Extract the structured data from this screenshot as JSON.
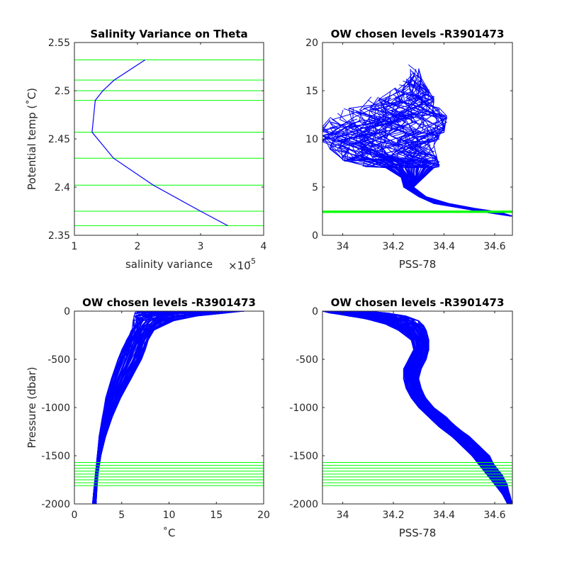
{
  "colors": {
    "profile": "#0000ff",
    "level": "#00ff00",
    "axis": "#262626",
    "background": "#ffffff"
  },
  "chart_data": [
    {
      "type": "line",
      "title": "Salinity Variance on Theta",
      "xlabel": "salinity variance",
      "x_exponent_label": "×10",
      "x_exponent_power": "-5",
      "ylabel": "Potential temp (˚C)",
      "xlim": [
        1,
        4
      ],
      "ylim": [
        2.35,
        2.55
      ],
      "xticks": [
        1,
        2,
        3,
        4
      ],
      "xtick_labels": [
        "1",
        "2",
        "3",
        "4"
      ],
      "yticks": [
        2.35,
        2.4,
        2.45,
        2.5,
        2.55
      ],
      "ytick_labels": [
        "2.35",
        "2.4",
        "2.45",
        "2.5",
        "2.55"
      ],
      "series": [
        {
          "x": [
            3.43,
            3.0,
            2.25,
            1.62,
            1.28,
            1.33,
            1.45,
            1.63,
            2.12
          ],
          "y": [
            2.36,
            2.375,
            2.402,
            2.43,
            2.457,
            2.49,
            2.5,
            2.511,
            2.532
          ]
        }
      ],
      "levels": [
        2.36,
        2.375,
        2.402,
        2.43,
        2.457,
        2.49,
        2.5,
        2.511,
        2.532
      ]
    },
    {
      "type": "line",
      "title": "OW chosen levels -R3901473",
      "xlabel": "PSS-78",
      "ylabel": "",
      "xlim": [
        33.92,
        34.67
      ],
      "ylim": [
        0,
        20
      ],
      "xticks": [
        34,
        34.2,
        34.4,
        34.6
      ],
      "xtick_labels": [
        "34",
        "34.2",
        "34.4",
        "34.6"
      ],
      "yticks": [
        0,
        5,
        10,
        15,
        20
      ],
      "ytick_labels": [
        "0",
        "5",
        "10",
        "15",
        "20"
      ],
      "profile_envelope": {
        "theta": [
          2.0,
          2.4,
          2.8,
          3.3,
          4.0,
          5.0,
          6.0,
          7.0,
          7.5,
          8.0,
          9.0,
          10.0,
          11.0,
          12.0,
          13.0,
          14.0,
          15.0,
          16.0,
          17.0,
          18.0
        ],
        "s_min": [
          34.66,
          34.56,
          34.47,
          34.36,
          34.3,
          34.24,
          34.23,
          34.17,
          34.08,
          34.0,
          33.95,
          33.92,
          33.92,
          33.95,
          33.98,
          34.03,
          34.1,
          34.15,
          34.18,
          34.22
        ],
        "s_max": [
          34.67,
          34.62,
          34.52,
          34.42,
          34.33,
          34.28,
          34.32,
          34.36,
          34.38,
          34.37,
          34.36,
          34.38,
          34.4,
          34.41,
          34.38,
          34.36,
          34.34,
          34.31,
          34.3,
          34.26
        ]
      },
      "levels": [
        2.36,
        2.375,
        2.402,
        2.43,
        2.457,
        2.49,
        2.5,
        2.511,
        2.532
      ]
    },
    {
      "type": "line",
      "title": "OW chosen levels -R3901473",
      "xlabel": "˚C",
      "ylabel": "Pressure (dbar)",
      "xlim": [
        0,
        20
      ],
      "ylim": [
        -2000,
        0
      ],
      "xticks": [
        0,
        5,
        10,
        15,
        20
      ],
      "xtick_labels": [
        "0",
        "5",
        "10",
        "15",
        "20"
      ],
      "yticks": [
        -2000,
        -1500,
        -1000,
        -500,
        0
      ],
      "ytick_labels": [
        "-2000",
        "-1500",
        "-1000",
        "-500",
        "0"
      ],
      "profile_envelope": {
        "p": [
          0,
          -20,
          -50,
          -100,
          -200,
          -300,
          -400,
          -500,
          -700,
          -900,
          -1100,
          -1300,
          -1500,
          -1700,
          -1900,
          -2000
        ],
        "v_min": [
          6.5,
          6.4,
          6.3,
          6.2,
          6.0,
          5.5,
          5.0,
          4.6,
          3.9,
          3.3,
          2.9,
          2.6,
          2.4,
          2.2,
          2.0,
          1.9
        ],
        "v_max": [
          18.0,
          16.0,
          13.0,
          10.5,
          8.5,
          7.8,
          7.5,
          7.1,
          6.0,
          4.9,
          4.0,
          3.3,
          2.8,
          2.5,
          2.35,
          2.3
        ]
      },
      "levels": [
        -1570,
        -1600,
        -1630,
        -1660,
        -1690,
        -1720,
        -1750,
        -1780,
        -1810
      ]
    },
    {
      "type": "line",
      "title": "OW chosen levels -R3901473",
      "xlabel": "PSS-78",
      "ylabel": "",
      "xlim": [
        33.92,
        34.67
      ],
      "ylim": [
        -2000,
        0
      ],
      "xticks": [
        34,
        34.2,
        34.4,
        34.6
      ],
      "xtick_labels": [
        "34",
        "34.2",
        "34.4",
        "34.6"
      ],
      "yticks": [
        -2000,
        -1500,
        -1000,
        -500,
        0
      ],
      "ytick_labels": [
        "-2000",
        "-1500",
        "-1000",
        "-500",
        "0"
      ],
      "profile_envelope": {
        "p": [
          0,
          -20,
          -50,
          -100,
          -150,
          -200,
          -300,
          -400,
          -500,
          -600,
          -700,
          -800,
          -900,
          -1000,
          -1100,
          -1200,
          -1300,
          -1400,
          -1500,
          -1600,
          -1700,
          -1800,
          -1900,
          -2000
        ],
        "v_min": [
          33.92,
          33.95,
          34.02,
          34.12,
          34.18,
          34.22,
          34.27,
          34.28,
          34.26,
          34.24,
          34.24,
          34.25,
          34.27,
          34.3,
          34.34,
          34.38,
          34.43,
          34.47,
          34.51,
          34.54,
          34.57,
          34.6,
          34.63,
          34.65
        ],
        "v_max": [
          34.1,
          34.18,
          34.25,
          34.3,
          34.32,
          34.33,
          34.34,
          34.34,
          34.33,
          34.31,
          34.3,
          34.31,
          34.33,
          34.36,
          34.41,
          34.45,
          34.5,
          34.54,
          34.58,
          34.6,
          34.63,
          34.65,
          34.66,
          34.67
        ]
      },
      "levels": [
        -1570,
        -1600,
        -1630,
        -1660,
        -1690,
        -1720,
        -1750,
        -1780,
        -1810
      ]
    }
  ]
}
